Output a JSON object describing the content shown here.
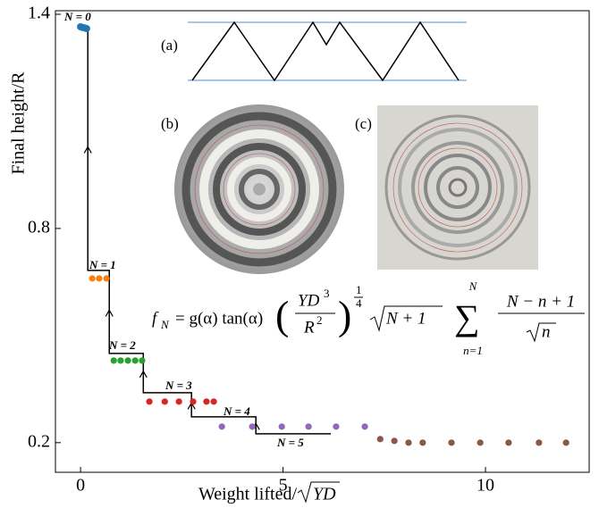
{
  "chart_data": {
    "type": "scatter",
    "xlabel": "Weight lifted/",
    "xlabel_sqrt": "YD",
    "ylabel": "Final height/R",
    "xlim": [
      -0.62,
      12.56
    ],
    "ylim": [
      0.117,
      1.41
    ],
    "xticks": [
      0,
      5,
      10
    ],
    "yticks": [
      0.2,
      0.8,
      1.4
    ],
    "series": [
      {
        "name": "N = 0",
        "color": "#1f77b4",
        "x": [
          0.0,
          0.05,
          0.1,
          0.15
        ],
        "values": [
          1.365,
          1.363,
          1.362,
          1.36
        ]
      },
      {
        "name": "N = 1",
        "color": "#ff7f0e",
        "x": [
          0.29,
          0.46,
          0.64
        ],
        "values": [
          0.66,
          0.66,
          0.66
        ]
      },
      {
        "name": "N = 2",
        "color": "#2ca02c",
        "x": [
          0.82,
          0.99,
          1.17,
          1.35,
          1.52
        ],
        "values": [
          0.43,
          0.43,
          0.43,
          0.43,
          0.43
        ]
      },
      {
        "name": "N = 3",
        "color": "#d62728",
        "x": [
          1.7,
          2.08,
          2.43,
          2.78,
          3.11,
          3.29
        ],
        "values": [
          0.315,
          0.315,
          0.315,
          0.315,
          0.315,
          0.315
        ]
      },
      {
        "name": "N = 4",
        "color": "#9467bd",
        "x": [
          3.49,
          4.24,
          4.97,
          5.63,
          6.31,
          7.02
        ],
        "values": [
          0.245,
          0.245,
          0.245,
          0.245,
          0.245,
          0.245
        ]
      },
      {
        "name": "N = 5",
        "color": "#8c564b",
        "x": [
          7.4,
          7.75,
          8.1,
          8.45,
          9.16,
          9.87,
          10.57,
          11.32,
          11.99
        ],
        "values": [
          0.21,
          0.205,
          0.2,
          0.2,
          0.2,
          0.2,
          0.2,
          0.2,
          0.2
        ]
      }
    ],
    "step": {
      "color": "#000000",
      "x": [
        0.18,
        0.18,
        0.71,
        0.71,
        1.55,
        1.55,
        2.74,
        2.74,
        4.33,
        4.33,
        6.18
      ],
      "values": [
        1.365,
        0.6825,
        0.6825,
        0.45,
        0.45,
        0.34,
        0.34,
        0.2725,
        0.2725,
        0.225,
        0.225
      ]
    },
    "insets": [
      "(a)",
      "(b)",
      "(c)"
    ],
    "formula": {
      "f": "f",
      "f_sub": "N",
      "rhs": "= g(α) tan(α)",
      "num": "YD",
      "num_sup": "3",
      "den": "R",
      "den_sup": "2",
      "exp_num": "1",
      "exp_den": "4",
      "root": "N + 1",
      "sum": "∑",
      "sum_top": "N",
      "sum_bot": "n=1",
      "frac_num": "N − n + 1",
      "frac_den": "n"
    }
  }
}
